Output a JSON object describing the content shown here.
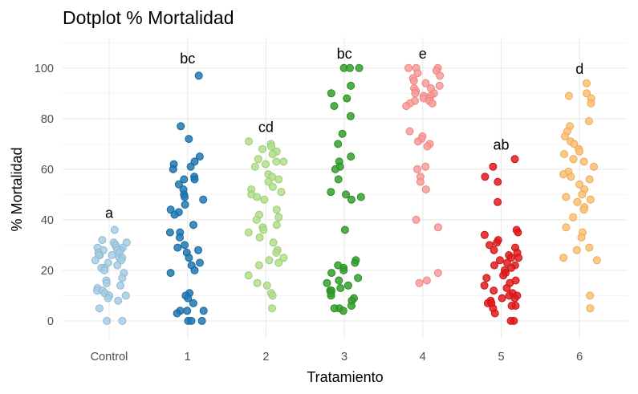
{
  "chart_data": {
    "type": "scatter",
    "title": "Dotplot % Mortalidad",
    "xlabel": "Tratamiento",
    "ylabel": "% Mortalidad",
    "ylim": [
      -7,
      112
    ],
    "yticks": [
      0,
      20,
      40,
      60,
      80,
      100
    ],
    "grid": true,
    "legend": "none",
    "categories": [
      "Control",
      "1",
      "2",
      "3",
      "4",
      "5",
      "6"
    ],
    "series": [
      {
        "category": "Control",
        "letter": "a",
        "letter_y": 43,
        "color": "#a6cee3",
        "stroke": "#8fb9d1",
        "values": [
          36,
          32,
          31,
          31,
          30,
          30,
          29,
          29,
          29,
          28,
          28,
          28,
          27,
          27,
          26,
          26,
          26,
          25,
          25,
          24,
          24,
          23,
          22,
          21,
          21,
          20,
          19,
          17,
          16,
          15,
          14,
          13,
          12,
          12,
          11,
          10,
          10,
          9,
          8,
          5,
          0,
          0
        ]
      },
      {
        "category": "1",
        "letter": "bc",
        "letter_y": 104,
        "color": "#1f78b4",
        "stroke": "#17679b",
        "values": [
          97,
          77,
          72,
          65,
          63,
          62,
          61,
          60,
          57,
          56,
          56,
          54,
          52,
          50,
          49,
          48,
          46,
          44,
          43,
          42,
          38,
          35,
          35,
          33,
          30,
          29,
          28,
          27,
          25,
          23,
          22,
          20,
          19,
          11,
          10,
          9,
          7,
          4,
          4,
          4,
          3,
          0,
          0,
          0
        ]
      },
      {
        "category": "2",
        "letter": "cd",
        "letter_y": 77,
        "color": "#b2df8a",
        "stroke": "#9cc977",
        "values": [
          71,
          70,
          69,
          68,
          67,
          66,
          64,
          63,
          63,
          62,
          61,
          58,
          57,
          56,
          55,
          53,
          52,
          51,
          50,
          49,
          48,
          44,
          42,
          41,
          40,
          38,
          37,
          36,
          35,
          33,
          31,
          28,
          27,
          25,
          24,
          23,
          22,
          18,
          15,
          14,
          11,
          10,
          5
        ]
      },
      {
        "category": "3",
        "letter": "bc",
        "letter_y": 106,
        "color": "#33a02c",
        "stroke": "#278b22",
        "values": [
          100,
          100,
          100,
          93,
          90,
          88,
          85,
          81,
          74,
          70,
          65,
          63,
          61,
          60,
          56,
          51,
          50,
          49,
          48,
          36,
          24,
          23,
          22,
          21,
          20,
          19,
          17,
          16,
          15,
          14,
          13,
          12,
          12,
          11,
          10,
          9,
          8,
          6,
          5,
          5,
          4
        ]
      },
      {
        "category": "4",
        "letter": "e",
        "letter_y": 106,
        "color": "#fb9a99",
        "stroke": "#e58584",
        "values": [
          100,
          100,
          100,
          99,
          98,
          97,
          96,
          95,
          94,
          93,
          92,
          92,
          91,
          90,
          90,
          89,
          89,
          88,
          88,
          87,
          87,
          86,
          86,
          85,
          75,
          73,
          72,
          71,
          70,
          69,
          61,
          60,
          57,
          55,
          52,
          40,
          37,
          19,
          16,
          15
        ]
      },
      {
        "category": "5",
        "letter": "ab",
        "letter_y": 70,
        "color": "#e31a1c",
        "stroke": "#c71517",
        "values": [
          64,
          61,
          57,
          55,
          47,
          36,
          35,
          34,
          32,
          31,
          30,
          29,
          28,
          27,
          26,
          25,
          25,
          24,
          23,
          22,
          22,
          21,
          20,
          19,
          18,
          17,
          16,
          15,
          14,
          13,
          12,
          11,
          10,
          10,
          9,
          9,
          8,
          7,
          7,
          6,
          6,
          5,
          3,
          0,
          0
        ]
      },
      {
        "category": "6",
        "letter": "d",
        "letter_y": 100,
        "color": "#fdbf6f",
        "stroke": "#e7aa5c",
        "values": [
          94,
          90,
          89,
          88,
          86,
          79,
          77,
          75,
          73,
          71,
          70,
          68,
          67,
          66,
          64,
          63,
          61,
          59,
          58,
          57,
          56,
          54,
          52,
          50,
          49,
          48,
          47,
          45,
          44,
          41,
          37,
          35,
          33,
          29,
          28,
          25,
          24,
          10,
          5
        ]
      }
    ]
  }
}
